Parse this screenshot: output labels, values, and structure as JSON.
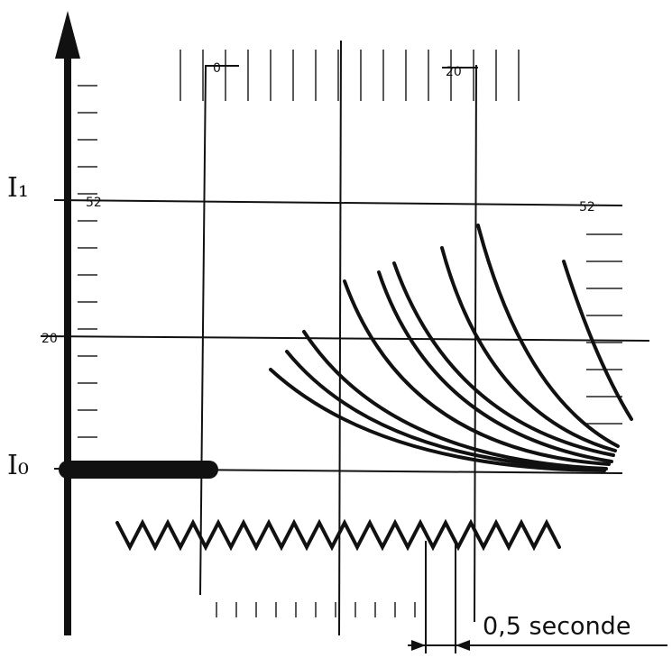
{
  "labels": {
    "i1": "I₁",
    "i0": "I₀",
    "time_scale": "0,5 seconde"
  },
  "graticule_labels": [
    "0",
    "20",
    "52",
    "52",
    "20"
  ]
}
